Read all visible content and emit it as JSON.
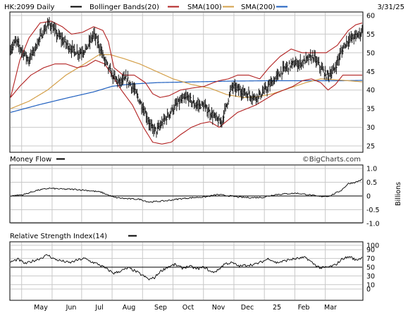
{
  "header": {
    "ticker_label": "HK:2099 Daily",
    "legend": [
      {
        "label": "Bollinger Bands(20)",
        "color": "#b22222"
      },
      {
        "label": "SMA(100)",
        "color": "#d4a04a"
      },
      {
        "label": "SMA(200)",
        "color": "#1f5fbf"
      }
    ],
    "date_label": "3/31/25"
  },
  "watermark": "©BigCharts.com",
  "x_months": [
    "May",
    "Jun",
    "Jul",
    "Aug",
    "Sep",
    "Oct",
    "Nov",
    "Dec",
    "25",
    "Feb",
    "Mar"
  ],
  "colors": {
    "price": "#000000",
    "bollinger": "#b22222",
    "sma100": "#d4a04a",
    "sma200": "#1f5fbf",
    "grid": "#c8c8c8"
  },
  "chart_data": [
    {
      "type": "ohlc",
      "panel": "price",
      "ylim": [
        25,
        60
      ],
      "yticks": [
        25,
        30,
        35,
        40,
        45,
        50,
        55,
        60
      ],
      "grid": true,
      "price_close_keypoints": [
        [
          0,
          51
        ],
        [
          6,
          53
        ],
        [
          14,
          50
        ],
        [
          20,
          48
        ],
        [
          28,
          52
        ],
        [
          35,
          55.5
        ],
        [
          42,
          58
        ],
        [
          50,
          55
        ],
        [
          58,
          53
        ],
        [
          66,
          51
        ],
        [
          74,
          50
        ],
        [
          82,
          51
        ],
        [
          90,
          55
        ],
        [
          96,
          52
        ],
        [
          102,
          48
        ],
        [
          110,
          44
        ],
        [
          118,
          42
        ],
        [
          126,
          43
        ],
        [
          134,
          40
        ],
        [
          140,
          37
        ],
        [
          146,
          34
        ],
        [
          152,
          30
        ],
        [
          158,
          29
        ],
        [
          164,
          31
        ],
        [
          170,
          33
        ],
        [
          176,
          35
        ],
        [
          184,
          37
        ],
        [
          192,
          38
        ],
        [
          200,
          36
        ],
        [
          208,
          36
        ],
        [
          216,
          34
        ],
        [
          224,
          32
        ],
        [
          228,
          31
        ],
        [
          234,
          36
        ],
        [
          240,
          41
        ],
        [
          248,
          40
        ],
        [
          256,
          39
        ],
        [
          264,
          38
        ],
        [
          272,
          39
        ],
        [
          280,
          41
        ],
        [
          290,
          44
        ],
        [
          298,
          46
        ],
        [
          306,
          47
        ],
        [
          312,
          47
        ],
        [
          320,
          48
        ],
        [
          328,
          49
        ],
        [
          336,
          46
        ],
        [
          342,
          44
        ],
        [
          350,
          45
        ],
        [
          358,
          50
        ],
        [
          364,
          53
        ],
        [
          370,
          54
        ],
        [
          378,
          55
        ],
        [
          381,
          56
        ]
      ],
      "bollinger_upper_keypoints": [
        [
          0,
          38
        ],
        [
          10,
          48
        ],
        [
          20,
          54
        ],
        [
          32,
          58
        ],
        [
          44,
          58.5
        ],
        [
          56,
          57
        ],
        [
          66,
          55
        ],
        [
          78,
          55.5
        ],
        [
          90,
          57
        ],
        [
          100,
          56
        ],
        [
          106,
          53
        ],
        [
          112,
          46
        ],
        [
          122,
          44
        ],
        [
          134,
          44
        ],
        [
          146,
          42
        ],
        [
          154,
          39
        ],
        [
          162,
          38
        ],
        [
          172,
          38.5
        ],
        [
          184,
          40
        ],
        [
          196,
          40.5
        ],
        [
          210,
          41
        ],
        [
          220,
          42
        ],
        [
          226,
          42.5
        ],
        [
          236,
          43
        ],
        [
          246,
          44
        ],
        [
          258,
          44
        ],
        [
          270,
          43
        ],
        [
          280,
          46
        ],
        [
          292,
          49
        ],
        [
          304,
          51
        ],
        [
          316,
          50
        ],
        [
          330,
          50
        ],
        [
          342,
          50
        ],
        [
          354,
          52
        ],
        [
          366,
          56
        ],
        [
          374,
          57.5
        ],
        [
          381,
          58
        ]
      ],
      "bollinger_lower_keypoints": [
        [
          0,
          38
        ],
        [
          10,
          41
        ],
        [
          22,
          44
        ],
        [
          36,
          46
        ],
        [
          48,
          47
        ],
        [
          60,
          47
        ],
        [
          72,
          46
        ],
        [
          82,
          46.5
        ],
        [
          92,
          48
        ],
        [
          102,
          47
        ],
        [
          110,
          44
        ],
        [
          120,
          40
        ],
        [
          132,
          36
        ],
        [
          144,
          30
        ],
        [
          154,
          26
        ],
        [
          164,
          25.5
        ],
        [
          174,
          26
        ],
        [
          184,
          28
        ],
        [
          196,
          30
        ],
        [
          206,
          31
        ],
        [
          216,
          31.5
        ],
        [
          226,
          30
        ],
        [
          236,
          32
        ],
        [
          246,
          34
        ],
        [
          256,
          35
        ],
        [
          266,
          36
        ],
        [
          276,
          37.5
        ],
        [
          286,
          39
        ],
        [
          296,
          40
        ],
        [
          306,
          41
        ],
        [
          316,
          42.5
        ],
        [
          326,
          43
        ],
        [
          336,
          42
        ],
        [
          344,
          40
        ],
        [
          352,
          41.5
        ],
        [
          360,
          44
        ],
        [
          370,
          44
        ],
        [
          381,
          44
        ]
      ],
      "sma100_keypoints": [
        [
          0,
          35
        ],
        [
          20,
          37
        ],
        [
          40,
          40
        ],
        [
          60,
          44
        ],
        [
          80,
          47
        ],
        [
          96,
          49.5
        ],
        [
          108,
          49.5
        ],
        [
          122,
          48.5
        ],
        [
          140,
          47
        ],
        [
          158,
          45
        ],
        [
          176,
          43
        ],
        [
          196,
          41.5
        ],
        [
          216,
          40.5
        ],
        [
          234,
          38.8
        ],
        [
          252,
          38
        ],
        [
          268,
          38.2
        ],
        [
          284,
          39
        ],
        [
          302,
          40.5
        ],
        [
          320,
          42
        ],
        [
          336,
          43
        ],
        [
          350,
          42.8
        ],
        [
          366,
          42.5
        ],
        [
          381,
          42.2
        ]
      ],
      "sma200_keypoints": [
        [
          0,
          34
        ],
        [
          30,
          36
        ],
        [
          60,
          37.8
        ],
        [
          90,
          39.5
        ],
        [
          110,
          41
        ],
        [
          130,
          41.6
        ],
        [
          160,
          42
        ],
        [
          200,
          42.2
        ],
        [
          240,
          42.4
        ],
        [
          280,
          42.5
        ],
        [
          320,
          42.5
        ],
        [
          360,
          42.5
        ],
        [
          381,
          42.6
        ]
      ],
      "month_labels": [
        "May",
        "Jun",
        "Jul",
        "Aug",
        "Sep",
        "Oct",
        "Nov",
        "Dec",
        "25",
        "Feb",
        "Mar"
      ]
    },
    {
      "type": "line",
      "panel": "money_flow",
      "title": "Money Flow",
      "ylabel": "Billions",
      "ylim": [
        -1.0,
        1.0
      ],
      "yticks_labels": [
        "1.0",
        "0.5",
        "0",
        "-0.5",
        "-1.0"
      ],
      "yticks_values": [
        1.0,
        0.5,
        0,
        -0.5,
        -1.0
      ],
      "keypoints": [
        [
          0,
          0.0
        ],
        [
          14,
          0.05
        ],
        [
          28,
          0.2
        ],
        [
          42,
          0.28
        ],
        [
          56,
          0.25
        ],
        [
          70,
          0.24
        ],
        [
          84,
          0.2
        ],
        [
          98,
          0.14
        ],
        [
          112,
          -0.05
        ],
        [
          126,
          -0.1
        ],
        [
          140,
          -0.12
        ],
        [
          150,
          -0.22
        ],
        [
          158,
          -0.2
        ],
        [
          170,
          -0.17
        ],
        [
          184,
          -0.1
        ],
        [
          198,
          -0.06
        ],
        [
          212,
          -0.03
        ],
        [
          224,
          0.05
        ],
        [
          238,
          0.0
        ],
        [
          250,
          -0.05
        ],
        [
          262,
          -0.06
        ],
        [
          274,
          -0.05
        ],
        [
          286,
          0.05
        ],
        [
          298,
          0.08
        ],
        [
          310,
          0.1
        ],
        [
          322,
          0.05
        ],
        [
          334,
          -0.02
        ],
        [
          346,
          0.0
        ],
        [
          358,
          0.2
        ],
        [
          366,
          0.45
        ],
        [
          374,
          0.5
        ],
        [
          381,
          0.6
        ]
      ]
    },
    {
      "type": "line",
      "panel": "rsi",
      "title": "Relative Strength Index(14)",
      "ylim": [
        0,
        100
      ],
      "yticks": [
        0,
        10,
        30,
        50,
        70,
        90,
        100
      ],
      "yticks_labels": [
        "0",
        "10",
        "30",
        "50",
        "70",
        "90",
        "100"
      ],
      "keypoints": [
        [
          0,
          62
        ],
        [
          8,
          68
        ],
        [
          16,
          58
        ],
        [
          24,
          64
        ],
        [
          32,
          70
        ],
        [
          40,
          78
        ],
        [
          48,
          68
        ],
        [
          56,
          64
        ],
        [
          64,
          60
        ],
        [
          72,
          66
        ],
        [
          80,
          70
        ],
        [
          88,
          62
        ],
        [
          96,
          56
        ],
        [
          104,
          46
        ],
        [
          112,
          36
        ],
        [
          120,
          42
        ],
        [
          128,
          48
        ],
        [
          136,
          40
        ],
        [
          144,
          30
        ],
        [
          150,
          22
        ],
        [
          156,
          26
        ],
        [
          162,
          40
        ],
        [
          170,
          50
        ],
        [
          178,
          56
        ],
        [
          186,
          48
        ],
        [
          194,
          52
        ],
        [
          202,
          46
        ],
        [
          210,
          50
        ],
        [
          218,
          38
        ],
        [
          224,
          42
        ],
        [
          232,
          58
        ],
        [
          240,
          60
        ],
        [
          248,
          52
        ],
        [
          256,
          55
        ],
        [
          264,
          56
        ],
        [
          272,
          62
        ],
        [
          280,
          70
        ],
        [
          288,
          60
        ],
        [
          296,
          64
        ],
        [
          304,
          68
        ],
        [
          312,
          70
        ],
        [
          320,
          72
        ],
        [
          328,
          58
        ],
        [
          336,
          48
        ],
        [
          344,
          50
        ],
        [
          352,
          55
        ],
        [
          360,
          70
        ],
        [
          368,
          74
        ],
        [
          374,
          66
        ],
        [
          381,
          72
        ]
      ]
    }
  ]
}
